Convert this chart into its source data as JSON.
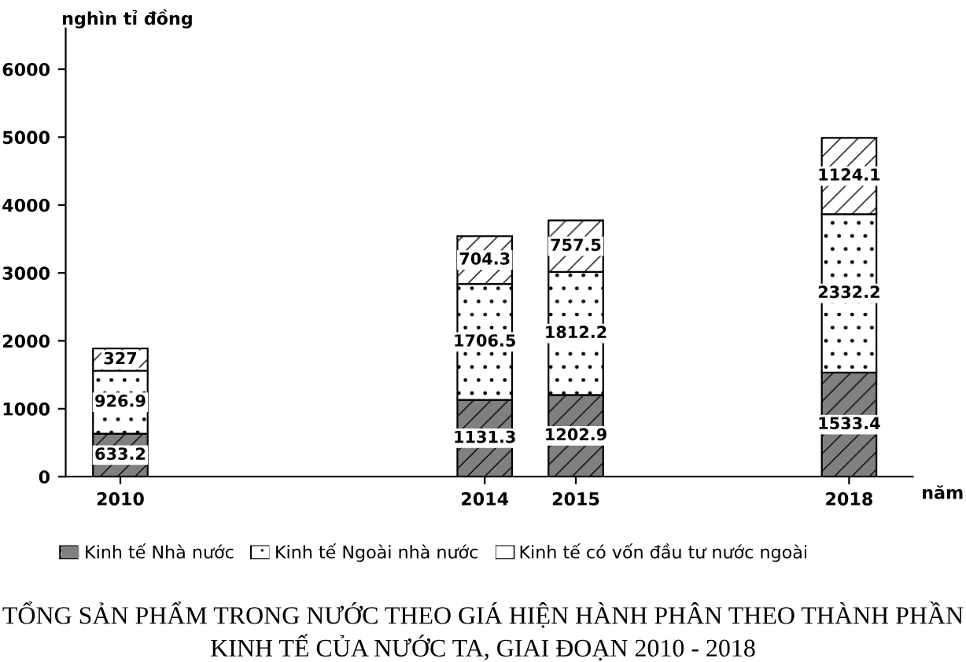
{
  "chart_data": {
    "type": "bar",
    "stacked": true,
    "title": "TỔNG SẢN PHẨM TRONG NƯỚC THEO GIÁ HIỆN HÀNH PHÂN THEO THÀNH PHẦN KINH TẾ CỦA NƯỚC TA, GIAI ĐOẠN 2010 - 2018",
    "xlabel": "năm",
    "ylabel": "nghìn tỉ đồng",
    "x": [
      2010,
      2014,
      2015,
      2018
    ],
    "series": [
      {
        "name": "Kinh tế Nhà nước",
        "color": "#808080",
        "values": [
          633.2,
          1131.3,
          1202.9,
          1533.4
        ]
      },
      {
        "name": "Kinh tế Ngoài nhà nước",
        "color": "#ffffff",
        "values": [
          926.9,
          1706.5,
          1812.2,
          2332.2
        ]
      },
      {
        "name": "Kinh tế có vốn đầu tư nước ngoài",
        "color": "#ffffff",
        "values": [
          327,
          704.3,
          757.5,
          1124.1
        ]
      }
    ],
    "xlim": [
      2009.4,
      2018.7
    ],
    "xticks": [
      2010,
      2014,
      2015,
      2018
    ],
    "ylim": [
      0,
      6600
    ],
    "yticks": [
      0,
      1000,
      2000,
      3000,
      4000,
      5000,
      6000
    ],
    "data_labels": true,
    "grid": false,
    "legend": "bottom"
  }
}
